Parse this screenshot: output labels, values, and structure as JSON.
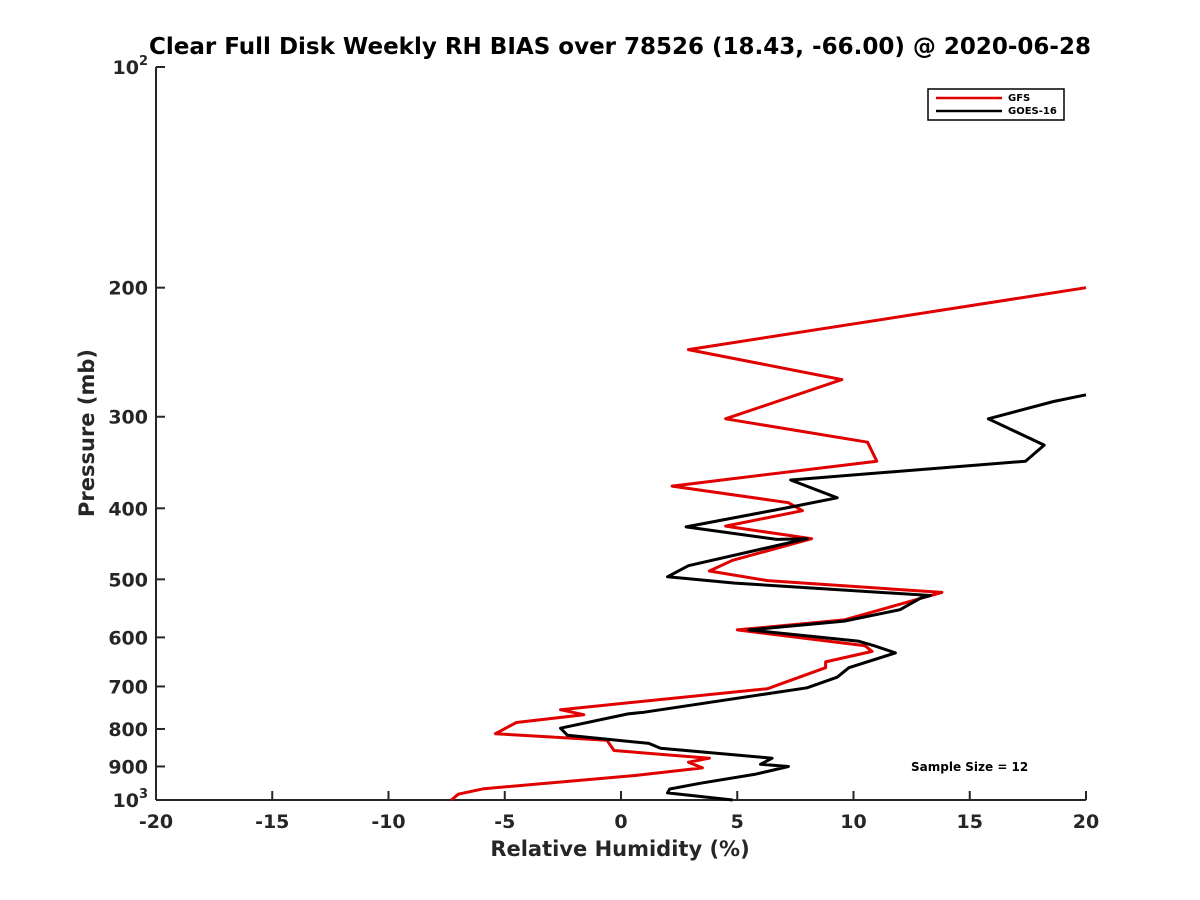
{
  "chart_data": {
    "type": "line",
    "title": "Clear Full Disk Weekly RH BIAS over 78526 (18.43, -66.00) @ 2020-06-28",
    "xlabel": "Relative Humidity (%)",
    "ylabel": "Pressure (mb)",
    "xlim": [
      -20,
      20
    ],
    "ylim": [
      100,
      1000
    ],
    "y_scale": "log",
    "y_reversed": true,
    "x_ticks": [
      "-20",
      "-15",
      "-10",
      "-5",
      "0",
      "5",
      "10",
      "15",
      "20"
    ],
    "x_tick_values": [
      -20,
      -15,
      -10,
      -5,
      0,
      5,
      10,
      15,
      20
    ],
    "y_ticks": [
      {
        "value": 100,
        "base": "10",
        "exp": "2"
      },
      {
        "value": 200,
        "label": "200"
      },
      {
        "value": 300,
        "label": "300"
      },
      {
        "value": 400,
        "label": "400"
      },
      {
        "value": 500,
        "label": "500"
      },
      {
        "value": 600,
        "label": "600"
      },
      {
        "value": 700,
        "label": "700"
      },
      {
        "value": 800,
        "label": "800"
      },
      {
        "value": 900,
        "label": "900"
      },
      {
        "value": 1000,
        "base": "10",
        "exp": "3"
      }
    ],
    "grid": false,
    "legend_position": "top-right",
    "series": [
      {
        "name": "GFS",
        "color": "#e00000",
        "points": [
          [
            20.0,
            200
          ],
          [
            2.9,
            243
          ],
          [
            9.5,
            267
          ],
          [
            4.5,
            302
          ],
          [
            10.6,
            325
          ],
          [
            11.0,
            345
          ],
          [
            2.2,
            373
          ],
          [
            7.2,
            393
          ],
          [
            7.8,
            403
          ],
          [
            4.5,
            423
          ],
          [
            8.2,
            440
          ],
          [
            4.8,
            471
          ],
          [
            3.8,
            487
          ],
          [
            6.3,
            502
          ],
          [
            13.8,
            521
          ],
          [
            9.6,
            568
          ],
          [
            5.0,
            586
          ],
          [
            10.5,
            616
          ],
          [
            10.8,
            627
          ],
          [
            8.8,
            648
          ],
          [
            8.8,
            660
          ],
          [
            6.3,
            705
          ],
          [
            -2.6,
            753
          ],
          [
            -1.6,
            765
          ],
          [
            -4.5,
            784
          ],
          [
            -5.4,
            812
          ],
          [
            -0.6,
            829
          ],
          [
            -0.3,
            856
          ],
          [
            3.8,
            877
          ],
          [
            2.9,
            888
          ],
          [
            3.5,
            904
          ],
          [
            0.6,
            926
          ],
          [
            -5.9,
            965
          ],
          [
            -7.0,
            982
          ],
          [
            -7.3,
            1000
          ]
        ]
      },
      {
        "name": "GOES-16",
        "color": "#000000",
        "points": [
          [
            20.0,
            280
          ],
          [
            18.6,
            286
          ],
          [
            15.8,
            302
          ],
          [
            18.2,
            328
          ],
          [
            17.4,
            345
          ],
          [
            7.3,
            366
          ],
          [
            9.3,
            387
          ],
          [
            7.2,
            399
          ],
          [
            2.8,
            424
          ],
          [
            6.7,
            441
          ],
          [
            8.0,
            440
          ],
          [
            2.9,
            479
          ],
          [
            2.0,
            496
          ],
          [
            4.9,
            506
          ],
          [
            13.3,
            526
          ],
          [
            12.9,
            530
          ],
          [
            12.0,
            550
          ],
          [
            9.6,
            570
          ],
          [
            5.5,
            586
          ],
          [
            10.2,
            607
          ],
          [
            10.9,
            616
          ],
          [
            11.8,
            630
          ],
          [
            9.8,
            660
          ],
          [
            9.3,
            680
          ],
          [
            8.0,
            703
          ],
          [
            1.0,
            759
          ],
          [
            0.3,
            763
          ],
          [
            -2.6,
            798
          ],
          [
            -2.3,
            816
          ],
          [
            1.2,
            837
          ],
          [
            1.7,
            850
          ],
          [
            6.5,
            877
          ],
          [
            6.0,
            894
          ],
          [
            7.2,
            900
          ],
          [
            5.8,
            922
          ],
          [
            3.4,
            949
          ],
          [
            2.1,
            966
          ],
          [
            2.0,
            978
          ],
          [
            4.8,
            1000
          ]
        ]
      }
    ],
    "annotation": "Sample Size = 12"
  }
}
